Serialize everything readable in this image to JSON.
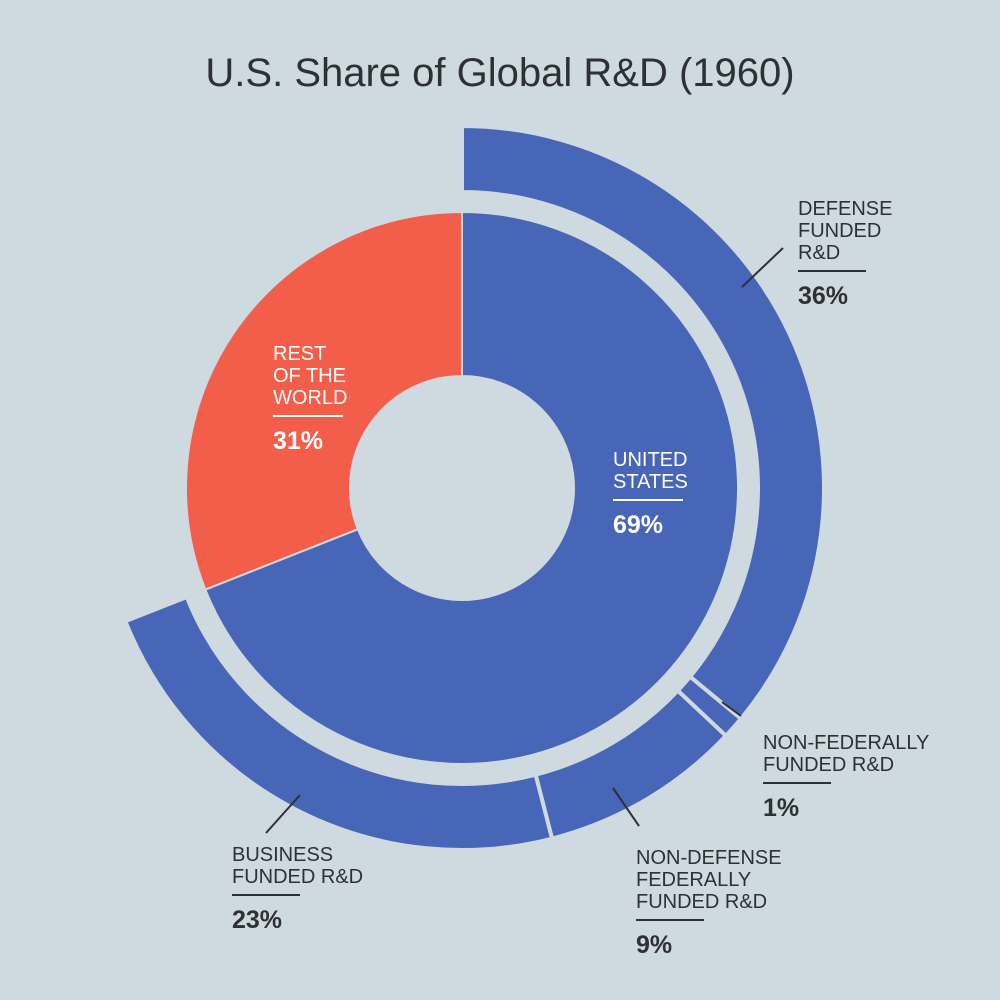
{
  "chart_data": {
    "type": "pie",
    "title": "U.S. Share of Global R&D (1960)",
    "inner_ring": [
      {
        "name": "UNITED STATES",
        "label_lines": [
          "UNITED",
          "STATES"
        ],
        "value": 69,
        "value_label": "69%",
        "color": "#4866b7"
      },
      {
        "name": "REST OF THE WORLD",
        "label_lines": [
          "REST",
          "OF THE",
          "WORLD"
        ],
        "value": 31,
        "value_label": "31%",
        "color": "#f25e4a"
      }
    ],
    "outer_ring": [
      {
        "name": "DEFENSE FUNDED R&D",
        "label_lines": [
          "DEFENSE",
          "FUNDED",
          "R&D"
        ],
        "value": 36,
        "value_label": "36%",
        "color": "#4866b7"
      },
      {
        "name": "NON-FEDERALLY FUNDED R&D",
        "label_lines": [
          "NON-FEDERALLY",
          "FUNDED R&D"
        ],
        "value": 1,
        "value_label": "1%",
        "color": "#4866b7"
      },
      {
        "name": "NON-DEFENSE FEDERALLY FUNDED R&D",
        "label_lines": [
          "NON-DEFENSE",
          "FEDERALLY",
          "FUNDED R&D"
        ],
        "value": 9,
        "value_label": "9%",
        "color": "#4866b7"
      },
      {
        "name": "BUSINESS FUNDED R&D",
        "label_lines": [
          "BUSINESS",
          "FUNDED R&D"
        ],
        "value": 23,
        "value_label": "23%",
        "color": "#4866b7"
      }
    ],
    "colors": {
      "background": "#cfd9e0",
      "text_dark": "#2d3134",
      "text_light": "#ffffff"
    }
  }
}
